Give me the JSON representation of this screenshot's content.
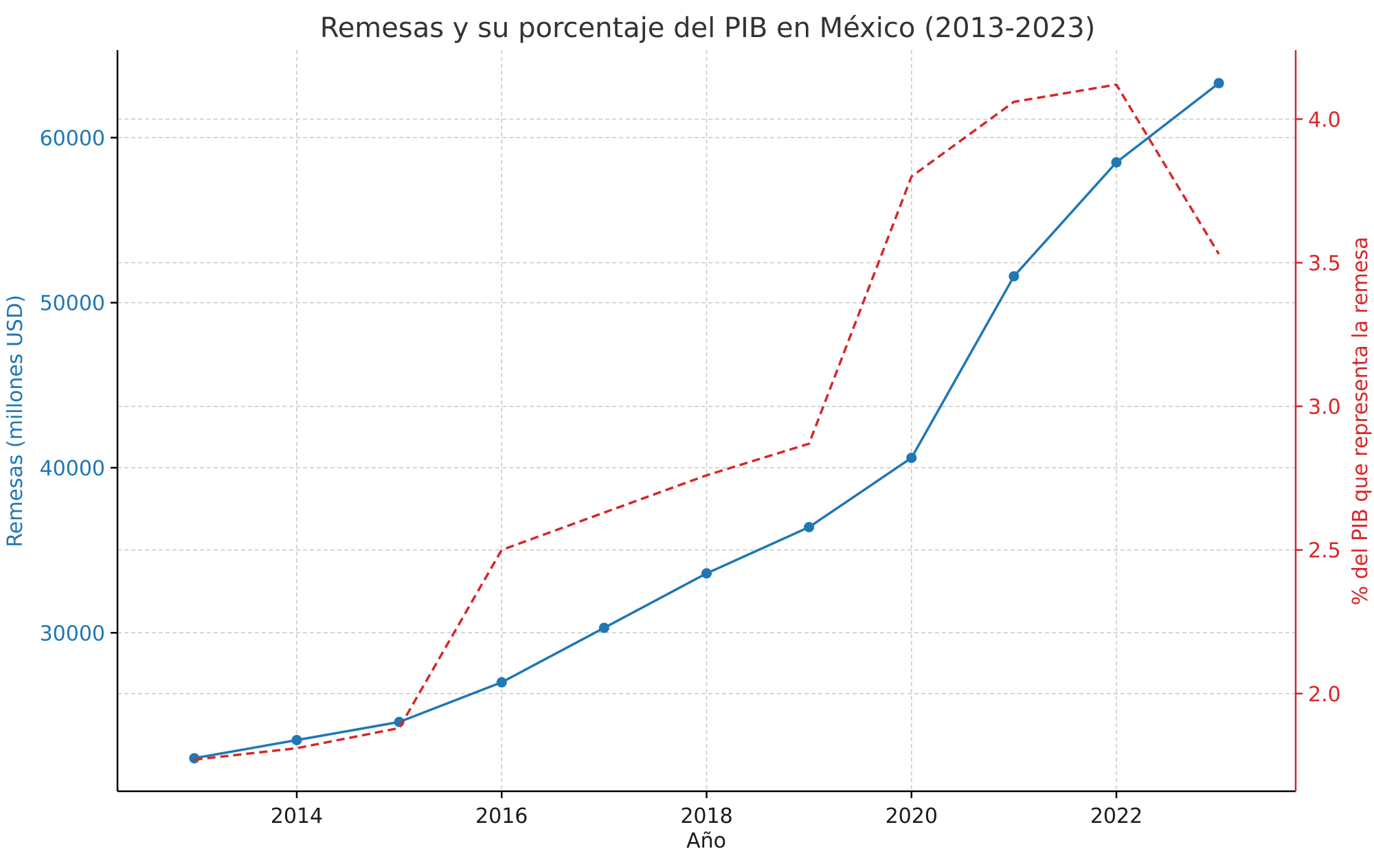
{
  "chart_data": {
    "type": "line",
    "title": "Remesas y su porcentaje del PIB en México (2013-2023)",
    "xlabel": "Año",
    "ylabel_left": "Remesas (millones USD)",
    "ylabel_right": "% del PIB que representa la remesa",
    "x": [
      2013,
      2014,
      2015,
      2016,
      2017,
      2018,
      2019,
      2020,
      2021,
      2022,
      2023
    ],
    "xlim": [
      2012.25,
      2023.75
    ],
    "x_ticks": [
      2014,
      2016,
      2018,
      2020,
      2022
    ],
    "x_tick_labels": [
      "2014",
      "2016",
      "2018",
      "2020",
      "2022"
    ],
    "ylim_left": [
      20400,
      65300
    ],
    "y_ticks_left": [
      30000,
      40000,
      50000,
      60000
    ],
    "y_tick_labels_left": [
      "30000",
      "40000",
      "50000",
      "60000"
    ],
    "ylim_right": [
      1.66,
      4.24
    ],
    "y_ticks_right": [
      2.0,
      2.5,
      3.0,
      3.5,
      4.0
    ],
    "y_tick_labels_right": [
      "2.0",
      "2.5",
      "3.0",
      "3.5",
      "4.0"
    ],
    "grid": true,
    "series": [
      {
        "name": "Remesas (millones USD)",
        "axis": "left",
        "color": "#1f77b4",
        "style": "solid",
        "marker": "circle",
        "values": [
          22400,
          23500,
          24600,
          27000,
          30300,
          33600,
          36400,
          40600,
          51600,
          58500,
          63300
        ]
      },
      {
        "name": "% del PIB que representa la remesa",
        "axis": "right",
        "color": "#d62728",
        "style": "dashed",
        "marker": "none",
        "values": [
          1.77,
          1.81,
          1.88,
          2.5,
          2.63,
          2.76,
          2.87,
          3.8,
          4.06,
          4.12,
          3.53
        ]
      }
    ]
  }
}
